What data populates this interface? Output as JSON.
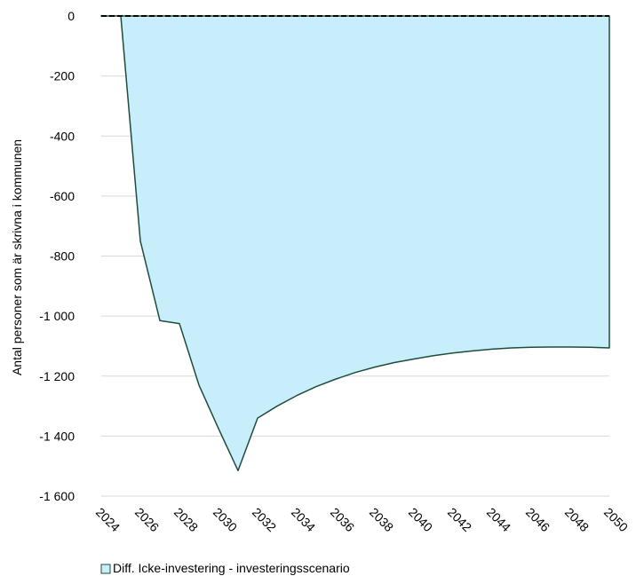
{
  "chart_data": {
    "type": "area",
    "x": [
      2025,
      2026,
      2027,
      2028,
      2029,
      2030,
      2031,
      2032,
      2033,
      2034,
      2035,
      2036,
      2037,
      2038,
      2039,
      2040,
      2041,
      2042,
      2043,
      2044,
      2045,
      2046,
      2047,
      2048,
      2049,
      2050
    ],
    "series": [
      {
        "name": "Diff. Icke-investering - investeringsscenario",
        "values": [
          0,
          -750,
          -1015,
          -1025,
          -1230,
          -1375,
          -1515,
          -1340,
          -1300,
          -1265,
          -1235,
          -1210,
          -1188,
          -1170,
          -1155,
          -1143,
          -1132,
          -1123,
          -1116,
          -1110,
          -1106,
          -1104,
          -1103,
          -1103,
          -1104,
          -1106
        ]
      }
    ],
    "ylabel": "Antal personer  som är  skrivna i kommunen",
    "ylim": [
      -1600,
      0
    ],
    "xlim": [
      2024,
      2050
    ],
    "y_ticks": [
      0,
      -200,
      -400,
      -600,
      -800,
      -1000,
      -1200,
      -1400,
      -1600
    ],
    "y_tick_labels": [
      "0",
      "-200",
      "-400",
      "-600",
      "-800",
      "-1 000",
      "-1 200",
      "-1 400",
      "-1 600"
    ],
    "x_ticks": [
      2024,
      2026,
      2028,
      2030,
      2032,
      2034,
      2036,
      2038,
      2040,
      2042,
      2044,
      2046,
      2048,
      2050
    ],
    "x_tick_labels": [
      "2024",
      "2026",
      "2028",
      "2030",
      "2032",
      "2034",
      "2036",
      "2038",
      "2040",
      "2042",
      "2044",
      "2046",
      "2048",
      "2050"
    ],
    "grid": true,
    "legend_position": "bottom",
    "colors": {
      "fill": "#c9eefb",
      "line": "#1e4d3c",
      "grid": "#d9d9d9",
      "zero_line": "#000000"
    }
  }
}
